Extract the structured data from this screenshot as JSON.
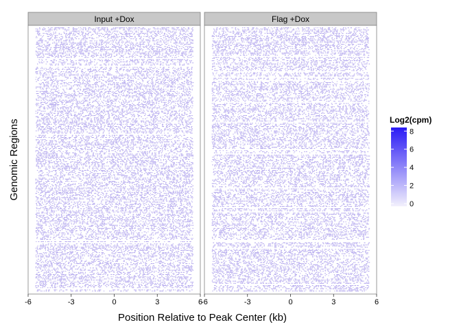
{
  "chart_data": {
    "type": "heatmap",
    "xlabel": "Position Relative to Peak Center (kb)",
    "ylabel": "Genomic Regions",
    "xlim": [
      -6,
      6
    ],
    "x_ticks": [
      -6,
      -3,
      0,
      3,
      6
    ],
    "x_tick_labels": [
      "-6",
      "-3",
      "0",
      "3",
      "6"
    ],
    "data_x_range": [
      -5.5,
      5.5
    ],
    "grid": false,
    "facets": [
      {
        "name": "Input +Dox"
      },
      {
        "name": "Flag +Dox"
      }
    ],
    "legend": {
      "title": "Log2(cpm)",
      "position": "right",
      "breaks": [
        0,
        2,
        4,
        6,
        8
      ],
      "break_labels": [
        "0",
        "2",
        "4",
        "6",
        "8"
      ],
      "range": [
        0,
        8.7
      ],
      "color_low": "#f2f0fc",
      "color_high": "#2a1af5"
    },
    "colors": {
      "cell_color": "#a596ea",
      "strip_fill": "#c8c8c8",
      "panel_border": "#7f7f7f"
    }
  }
}
